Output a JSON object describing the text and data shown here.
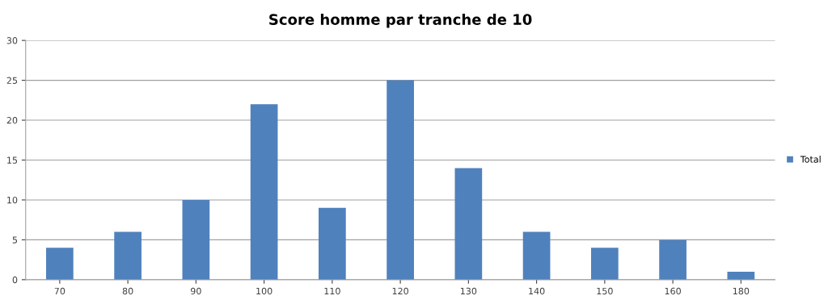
{
  "chart_data": {
    "type": "bar",
    "title": "Score homme par tranche de 10",
    "categories": [
      "70",
      "80",
      "90",
      "100",
      "110",
      "120",
      "130",
      "140",
      "150",
      "160",
      "180"
    ],
    "series": [
      {
        "name": "Total",
        "color": "#4f81bd",
        "values": [
          4,
          6,
          10,
          22,
          9,
          25,
          14,
          6,
          4,
          5,
          1
        ]
      }
    ],
    "ylim": [
      0,
      30
    ],
    "yticks": [
      0,
      5,
      10,
      15,
      20,
      25,
      30
    ],
    "grid": "y",
    "legend": "right"
  }
}
